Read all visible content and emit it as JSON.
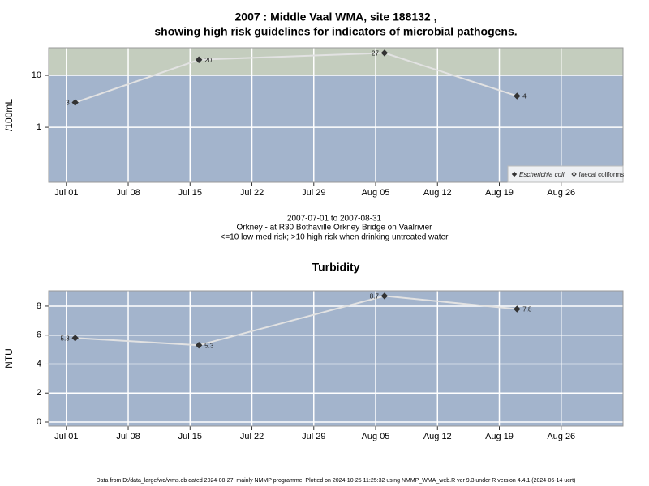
{
  "chart_data": [
    {
      "type": "line",
      "title_lines": [
        "2007 : Middle Vaal WMA, site 188132 ,",
        "showing high risk guidelines for indicators of microbial pathogens."
      ],
      "ylabel": "/100mL",
      "log_scale": true,
      "x": [
        "2007-07-02",
        "2007-07-16",
        "2007-08-06",
        "2007-08-21"
      ],
      "series": [
        {
          "name": "Escherichia coli",
          "color": "#333333",
          "font_style": "italic",
          "marker": "filled",
          "values": [
            3,
            20,
            27,
            4
          ]
        },
        {
          "name": "faecal coliforms",
          "color": "#333333",
          "font_style": "normal",
          "marker": "open",
          "values": [
            null,
            null,
            null,
            null
          ]
        }
      ],
      "line_color": "#e2e2e2",
      "xlim": [
        "2007-06-29",
        "2007-09-02"
      ],
      "xticks": [
        {
          "value": "2007-07-01",
          "label": "Jul 01"
        },
        {
          "value": "2007-07-08",
          "label": "Jul 08"
        },
        {
          "value": "2007-07-15",
          "label": "Jul 15"
        },
        {
          "value": "2007-07-22",
          "label": "Jul 22"
        },
        {
          "value": "2007-07-29",
          "label": "Jul 29"
        },
        {
          "value": "2007-08-05",
          "label": "Aug 05"
        },
        {
          "value": "2007-08-12",
          "label": "Aug 12"
        },
        {
          "value": "2007-08-19",
          "label": "Aug 19"
        },
        {
          "value": "2007-08-26",
          "label": "Aug 26"
        }
      ],
      "ylim": [
        0.087,
        34
      ],
      "yticks": [
        1,
        10
      ],
      "grid": true,
      "background_color": "#a3b4cc",
      "high_risk_threshold": 10,
      "high_risk_color": "#c4cdbe",
      "legend": "bottom right",
      "captions": [
        "2007-07-01 to 2007-08-31",
        "Orkney - at R30 Bothaville Orkney Bridge on Vaalrivier",
        "<=10 low-med risk; >10 high risk when drinking untreated water"
      ]
    },
    {
      "type": "line",
      "title_lines": [
        "Turbidity"
      ],
      "ylabel": "NTU",
      "log_scale": false,
      "x": [
        "2007-07-02",
        "2007-07-16",
        "2007-08-06",
        "2007-08-21"
      ],
      "series": [
        {
          "name": "Turbidity",
          "color": "#333333",
          "marker": "filled",
          "values": [
            5.8,
            5.3,
            8.7,
            7.8
          ]
        }
      ],
      "line_color": "#e2e2e2",
      "xlim": [
        "2007-06-29",
        "2007-09-02"
      ],
      "xticks": [
        {
          "value": "2007-07-01",
          "label": "Jul 01"
        },
        {
          "value": "2007-07-08",
          "label": "Jul 08"
        },
        {
          "value": "2007-07-15",
          "label": "Jul 15"
        },
        {
          "value": "2007-07-22",
          "label": "Jul 22"
        },
        {
          "value": "2007-07-29",
          "label": "Jul 29"
        },
        {
          "value": "2007-08-05",
          "label": "Aug 05"
        },
        {
          "value": "2007-08-12",
          "label": "Aug 12"
        },
        {
          "value": "2007-08-19",
          "label": "Aug 19"
        },
        {
          "value": "2007-08-26",
          "label": "Aug 26"
        }
      ],
      "ylim": [
        -0.28,
        9.06
      ],
      "yticks": [
        0,
        2,
        4,
        6,
        8
      ],
      "grid": true,
      "background_color": "#a3b4cc"
    }
  ],
  "footer": "Data from D:/data_large/wq/wms.db dated 2024-08-27, mainly NMMP programme. Plotted on 2024-10-25 11:25:32 using NMMP_WMA_web.R ver 9.3 under R version 4.4.1 (2024-06-14 ucrt)"
}
